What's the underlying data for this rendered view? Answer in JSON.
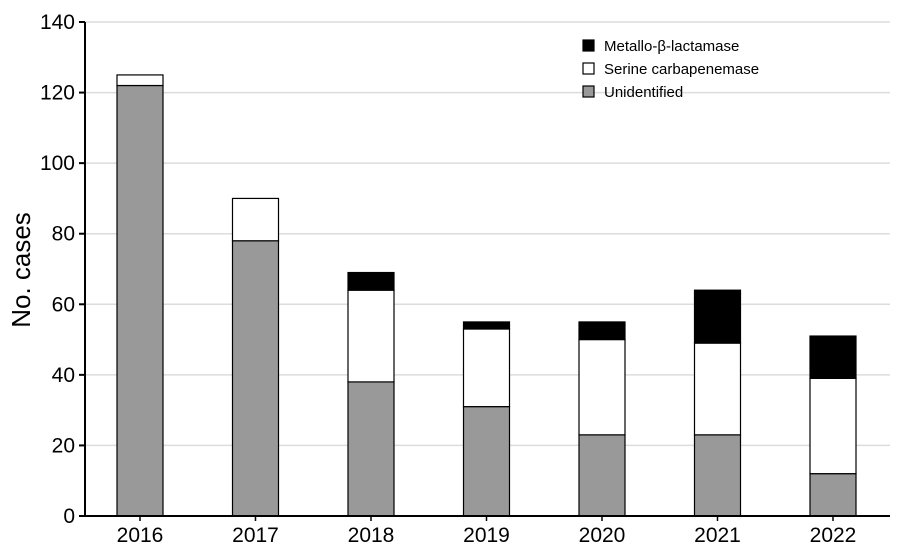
{
  "chart_data": {
    "type": "bar",
    "stacked": true,
    "categories": [
      "2016",
      "2017",
      "2018",
      "2019",
      "2020",
      "2021",
      "2022"
    ],
    "series": [
      {
        "name": "Unidentified",
        "color": "#999999",
        "values": [
          122,
          78,
          38,
          31,
          23,
          23,
          12
        ]
      },
      {
        "name": "Serine carbapenemase",
        "color": "#ffffff",
        "values": [
          3,
          12,
          26,
          22,
          27,
          26,
          27
        ]
      },
      {
        "name": "Metallo-β-lactamase",
        "color": "#000000",
        "values": [
          0,
          0,
          5,
          2,
          5,
          15,
          12
        ]
      }
    ],
    "legend_order": [
      "Metallo-β-lactamase",
      "Serine carbapenemase",
      "Unidentified"
    ],
    "legend_position": "top-right",
    "ylabel": "No. cases",
    "xlabel": "",
    "ylim": [
      0,
      140
    ],
    "yticks": [
      0,
      20,
      40,
      60,
      80,
      100,
      120,
      140
    ],
    "grid": "horizontal"
  }
}
